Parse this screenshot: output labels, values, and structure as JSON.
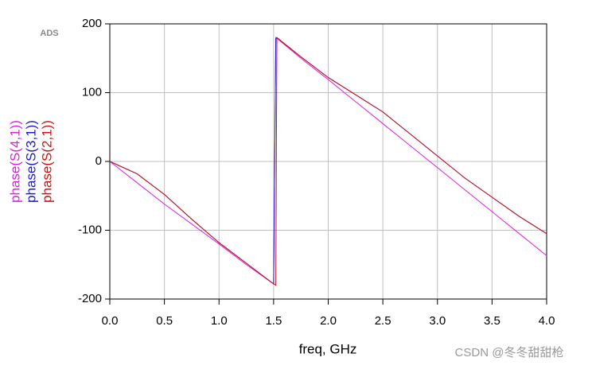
{
  "chart_data": {
    "type": "line",
    "logo": "ADS",
    "xlabel": "freq, GHz",
    "watermark": "CSDN @冬冬甜甜枪",
    "x": [
      0,
      0.25,
      0.5,
      0.75,
      1.0,
      1.25,
      1.5,
      1.52,
      1.53,
      1.75,
      2.0,
      2.25,
      2.5,
      2.75,
      3.0,
      3.25,
      3.5,
      3.75,
      4.0
    ],
    "series": [
      {
        "name": "phase(S(4,1))",
        "color": "#e01ee0",
        "values": [
          0,
          -31,
          -62,
          -91,
          -120,
          -150,
          -178,
          180,
          179,
          150,
          119,
          87,
          55,
          23,
          -9,
          -41,
          -73,
          -105,
          -137
        ]
      },
      {
        "name": "phase(S(3,1))",
        "color": "#1a1acc",
        "values": [
          0,
          -18,
          -48,
          -84,
          -118,
          -148,
          -178,
          179,
          180,
          152,
          122,
          97,
          72,
          40,
          8,
          -24,
          -52,
          -80,
          -105
        ]
      },
      {
        "name": "phase(S(2,1))",
        "color": "#d01010",
        "values": [
          0,
          -18,
          -48,
          -84,
          -118,
          -148,
          -178,
          -180,
          180,
          152,
          122,
          97,
          72,
          40,
          8,
          -24,
          -52,
          -80,
          -105
        ]
      }
    ],
    "xlim": [
      0,
      4
    ],
    "ylim": [
      -200,
      200
    ],
    "xticks": [
      {
        "value": 0,
        "label": "0.0"
      },
      0.5,
      {
        "value": 1,
        "label": "1.0"
      },
      1.5,
      {
        "value": 2,
        "label": "2.0"
      },
      2.5,
      {
        "value": 3,
        "label": "3.0"
      },
      3.5,
      {
        "value": 4,
        "label": "4.0"
      }
    ],
    "yticks": [
      200,
      100,
      0,
      -100,
      -200
    ],
    "grid": true
  }
}
